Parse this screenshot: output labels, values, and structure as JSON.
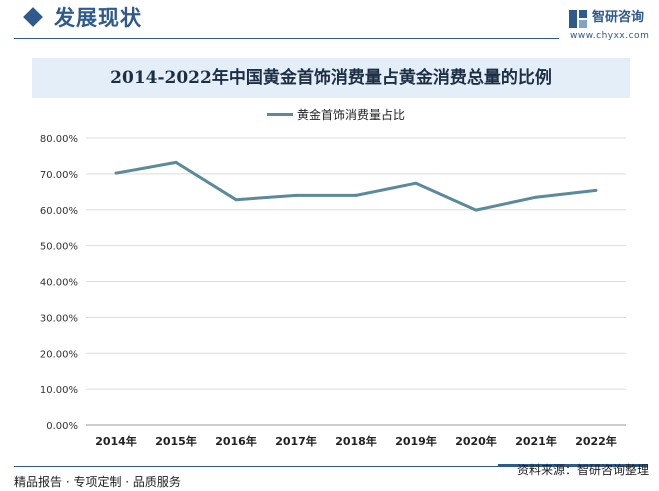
{
  "header": {
    "section_title": "发展现状",
    "logo_name": "智研咨询",
    "logo_url": "www.chyxx.com"
  },
  "footer": {
    "left_text": "精品报告 · 专项定制 · 品质服务",
    "source_text": "资料来源：智研咨询整理"
  },
  "colors": {
    "brand": "#2f5a8c",
    "series_line": "#5b8a9a",
    "title_band": "#e3eef8",
    "grid": "#dddddd"
  },
  "chart_data": {
    "type": "line",
    "title": "2014-2022年中国黄金首饰消费量占黄金消费总量的比例",
    "categories": [
      "2014年",
      "2015年",
      "2016年",
      "2017年",
      "2018年",
      "2019年",
      "2020年",
      "2021年",
      "2022年"
    ],
    "series": [
      {
        "name": "黄金首饰消费量占比",
        "values": [
          70.2,
          73.2,
          62.8,
          64.0,
          64.0,
          67.4,
          59.9,
          63.5,
          65.4
        ]
      }
    ],
    "y_ticks": [
      "0.00%",
      "10.00%",
      "20.00%",
      "30.00%",
      "40.00%",
      "50.00%",
      "60.00%",
      "70.00%",
      "80.00%"
    ],
    "ylim": [
      0,
      80
    ],
    "grid": true,
    "legend_position": "top-center"
  }
}
